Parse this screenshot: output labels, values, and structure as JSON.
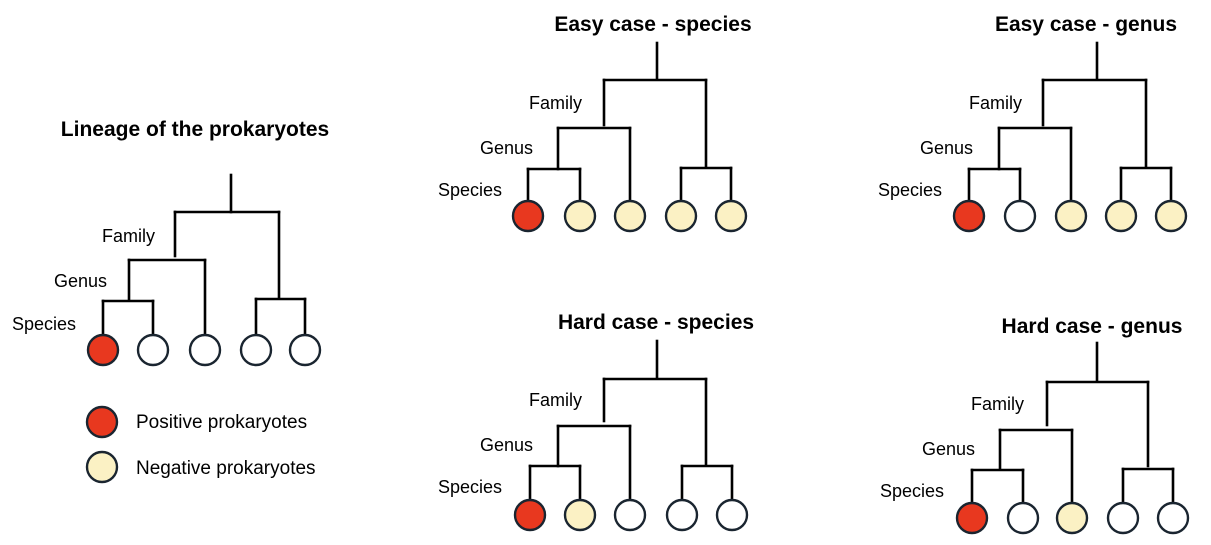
{
  "colors": {
    "positive": "#e8381f",
    "negative": "#fbf1c4",
    "unlabeled": "#ffffff",
    "line": "#000000",
    "node_outline": "#1a2530"
  },
  "legend": {
    "positive_label": "Positive prokaryotes",
    "negative_label": "Negative prokaryotes"
  },
  "trees": [
    {
      "id": "lineage",
      "title": "Lineage of the prokaryotes",
      "levels": {
        "family": "Family",
        "genus": "Genus",
        "species": "Species"
      },
      "leaves": [
        "positive",
        "unlabeled",
        "unlabeled",
        "unlabeled",
        "unlabeled"
      ]
    },
    {
      "id": "easy-species",
      "title": "Easy case - species",
      "levels": {
        "family": "Family",
        "genus": "Genus",
        "species": "Species"
      },
      "leaves": [
        "positive",
        "negative",
        "negative",
        "negative",
        "negative"
      ]
    },
    {
      "id": "easy-genus",
      "title": "Easy case - genus",
      "levels": {
        "family": "Family",
        "genus": "Genus",
        "species": "Species"
      },
      "leaves": [
        "positive",
        "unlabeled",
        "negative",
        "negative",
        "negative"
      ]
    },
    {
      "id": "hard-species",
      "title": "Hard case - species",
      "levels": {
        "family": "Family",
        "genus": "Genus",
        "species": "Species"
      },
      "leaves": [
        "positive",
        "negative",
        "unlabeled",
        "unlabeled",
        "unlabeled"
      ]
    },
    {
      "id": "hard-genus",
      "title": "Hard case - genus",
      "levels": {
        "family": "Family",
        "genus": "Genus",
        "species": "Species"
      },
      "leaves": [
        "positive",
        "unlabeled",
        "negative",
        "unlabeled",
        "unlabeled"
      ]
    }
  ]
}
